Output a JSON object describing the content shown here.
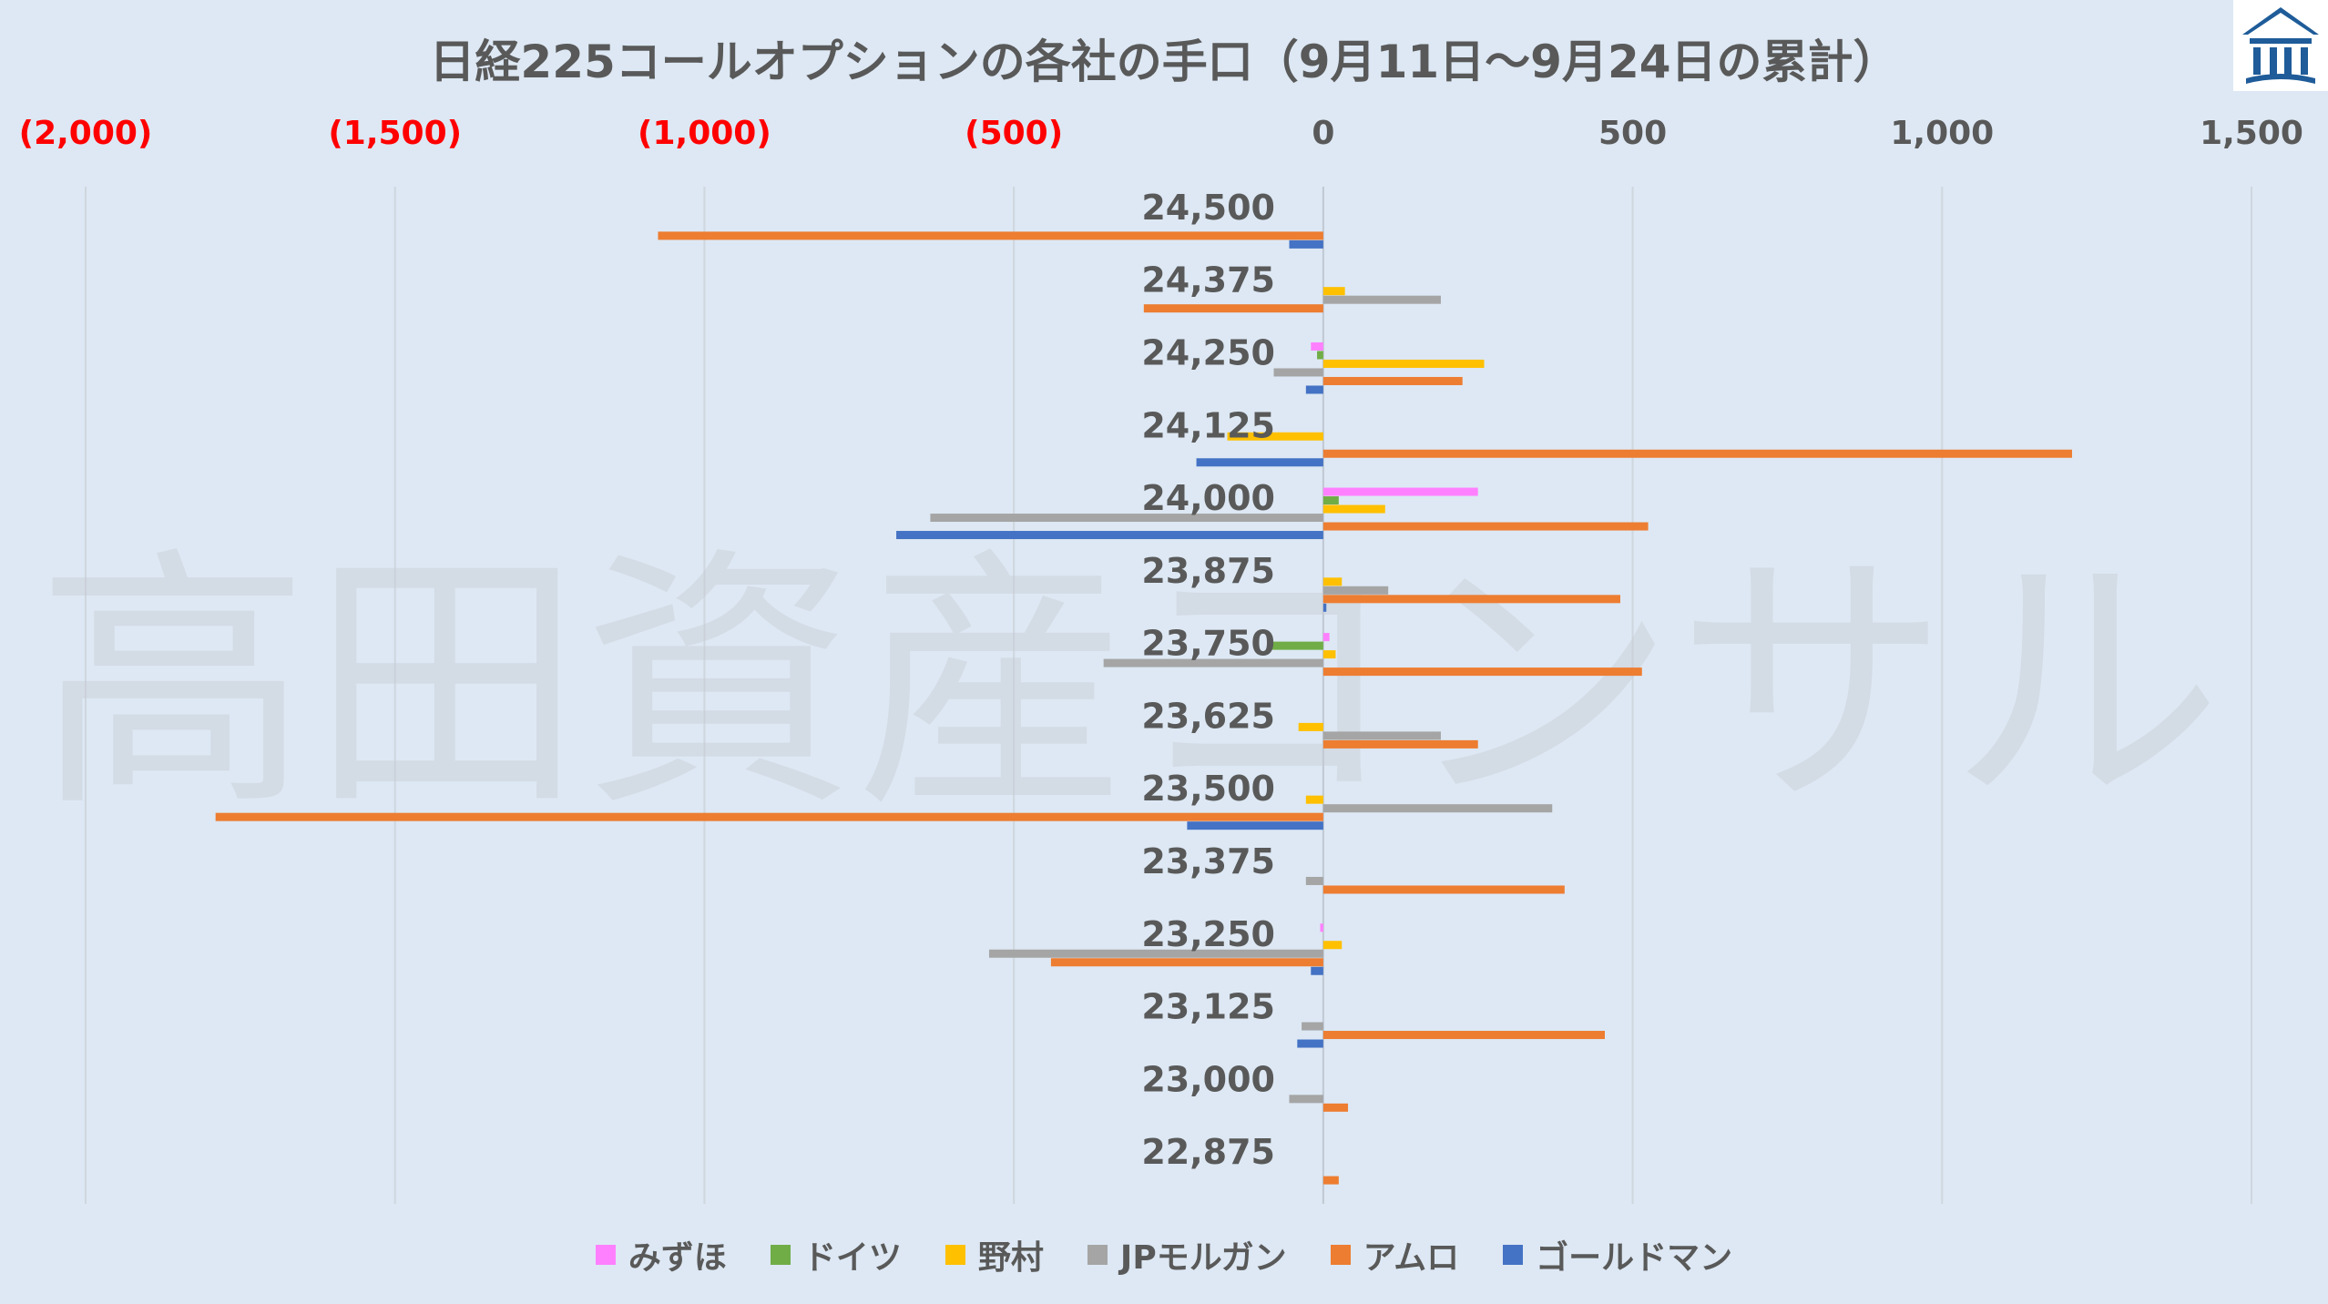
{
  "header": {
    "title": "日経225コールオプションの各社の手口（9月11日～9月24日の累計）"
  },
  "logo": {
    "icon": "building-columns-icon",
    "color": "#1f5c99"
  },
  "watermark": {
    "text": "高田資産コンサル"
  },
  "chart_data": {
    "type": "bar",
    "orientation": "horizontal",
    "title": "日経225コールオプションの各社の手口（9月11日～9月24日の累計）",
    "xlim": [
      -2000,
      1500
    ],
    "x_ticks": [
      -2000,
      -1500,
      -1000,
      -500,
      0,
      500,
      1000,
      1500
    ],
    "x_tick_labels": [
      "(2,000)",
      "(1,500)",
      "(1,000)",
      "(500)",
      "0",
      "500",
      "1,000",
      "1,500"
    ],
    "negative_tick_color": "#ff0000",
    "positive_tick_color": "#595959",
    "axis_position": "top",
    "grid": true,
    "legend_position": "bottom",
    "categories": [
      "24,500",
      "24,375",
      "24,250",
      "24,125",
      "24,000",
      "23,875",
      "23,750",
      "23,625",
      "23,500",
      "23,375",
      "23,250",
      "23,125",
      "23,000",
      "22,875"
    ],
    "series": [
      {
        "name": "みずほ",
        "color": "#ff80ff",
        "values": [
          0,
          0,
          -20,
          0,
          250,
          0,
          10,
          0,
          0,
          0,
          -5,
          0,
          0,
          0
        ]
      },
      {
        "name": "ドイツ",
        "color": "#70ad47",
        "values": [
          0,
          0,
          -10,
          0,
          25,
          0,
          -90,
          0,
          0,
          0,
          0,
          0,
          0,
          0
        ]
      },
      {
        "name": "野村",
        "color": "#ffc000",
        "values": [
          0,
          35,
          260,
          -155,
          100,
          30,
          20,
          -40,
          -28,
          0,
          30,
          0,
          0,
          0
        ]
      },
      {
        "name": "JPモルガン",
        "color": "#a5a5a5",
        "values": [
          0,
          190,
          -80,
          0,
          -635,
          105,
          -355,
          190,
          370,
          -28,
          -540,
          -35,
          -55,
          0
        ]
      },
      {
        "name": "アムロ",
        "color": "#ed7d31",
        "values": [
          -1075,
          -290,
          225,
          1210,
          525,
          480,
          515,
          250,
          -1790,
          390,
          -440,
          455,
          40,
          25
        ]
      },
      {
        "name": "ゴールドマン",
        "color": "#4472c4",
        "values": [
          -55,
          0,
          -28,
          -205,
          -690,
          5,
          0,
          0,
          -220,
          0,
          -20,
          -42,
          0,
          0
        ]
      }
    ]
  }
}
